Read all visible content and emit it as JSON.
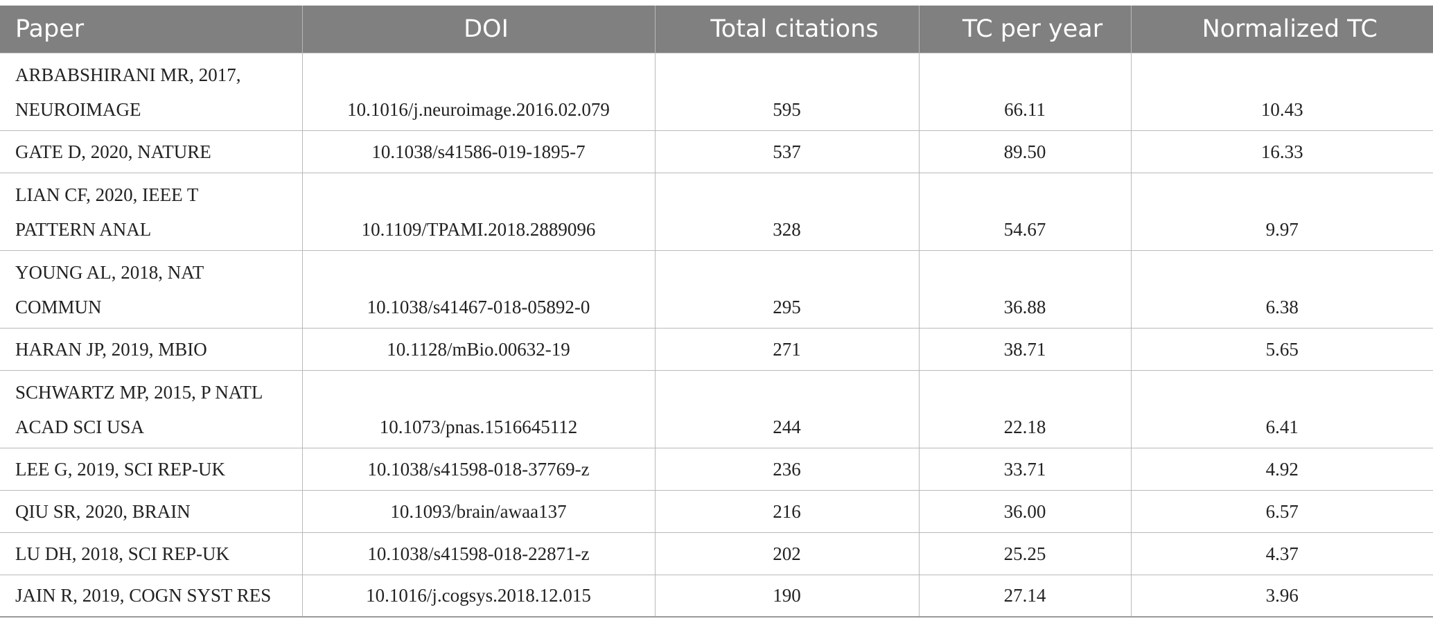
{
  "table": {
    "headers": [
      "Paper",
      "DOI",
      "Total citations",
      "TC per year",
      "Normalized TC"
    ],
    "rows": [
      {
        "paper": [
          "ARBABSHIRANI MR, 2017,",
          "NEUROIMAGE"
        ],
        "doi": "10.1016/j.neuroimage.2016.02.079",
        "total_citations": "595",
        "tc_per_year": "66.11",
        "normalized_tc": "10.43"
      },
      {
        "paper": [
          "GATE D, 2020, NATURE"
        ],
        "doi": "10.1038/s41586-019-1895-7",
        "total_citations": "537",
        "tc_per_year": "89.50",
        "normalized_tc": "16.33"
      },
      {
        "paper": [
          "LIAN CF, 2020, IEEE T",
          "PATTERN ANAL"
        ],
        "doi": "10.1109/TPAMI.2018.2889096",
        "total_citations": "328",
        "tc_per_year": "54.67",
        "normalized_tc": "9.97"
      },
      {
        "paper": [
          "YOUNG AL, 2018, NAT",
          "COMMUN"
        ],
        "doi": "10.1038/s41467-018-05892-0",
        "total_citations": "295",
        "tc_per_year": "36.88",
        "normalized_tc": "6.38"
      },
      {
        "paper": [
          "HARAN JP, 2019, MBIO"
        ],
        "doi": "10.1128/mBio.00632-19",
        "total_citations": "271",
        "tc_per_year": "38.71",
        "normalized_tc": "5.65"
      },
      {
        "paper": [
          "SCHWARTZ MP, 2015, P NATL",
          "ACAD SCI USA"
        ],
        "doi": "10.1073/pnas.1516645112",
        "total_citations": "244",
        "tc_per_year": "22.18",
        "normalized_tc": "6.41"
      },
      {
        "paper": [
          "LEE G, 2019, SCI REP-UK"
        ],
        "doi": "10.1038/s41598-018-37769-z",
        "total_citations": "236",
        "tc_per_year": "33.71",
        "normalized_tc": "4.92"
      },
      {
        "paper": [
          "QIU SR, 2020, BRAIN"
        ],
        "doi": "10.1093/brain/awaa137",
        "total_citations": "216",
        "tc_per_year": "36.00",
        "normalized_tc": "6.57"
      },
      {
        "paper": [
          "LU DH, 2018, SCI REP-UK"
        ],
        "doi": "10.1038/s41598-018-22871-z",
        "total_citations": "202",
        "tc_per_year": "25.25",
        "normalized_tc": "4.37"
      },
      {
        "paper": [
          "JAIN R, 2019, COGN SYST RES"
        ],
        "doi": "10.1016/j.cogsys.2018.12.015",
        "total_citations": "190",
        "tc_per_year": "27.14",
        "normalized_tc": "3.96"
      }
    ]
  }
}
